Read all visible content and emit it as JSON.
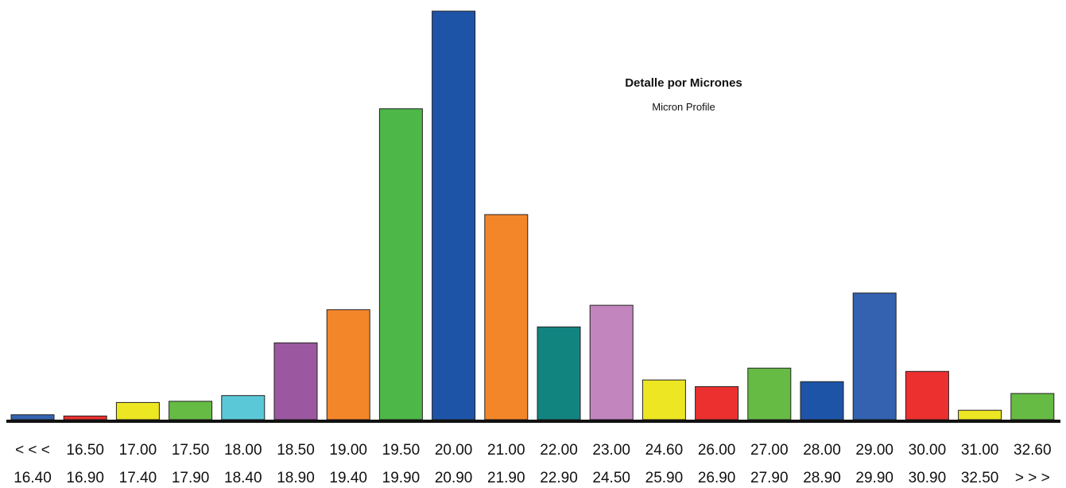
{
  "chart_data": {
    "type": "bar",
    "title": "Detalle por Micrones",
    "subtitle": "Micron Profile",
    "bins": [
      {
        "from": "< < <",
        "to": "16.40",
        "value": 1.2,
        "color": "#3462B0"
      },
      {
        "from": "16.50",
        "to": "16.90",
        "value": 0.9,
        "color": "#EC3030"
      },
      {
        "from": "17.00",
        "to": "17.40",
        "value": 4.2,
        "color": "#EDE623"
      },
      {
        "from": "17.50",
        "to": "17.90",
        "value": 4.5,
        "color": "#66BB44"
      },
      {
        "from": "18.00",
        "to": "18.40",
        "value": 5.9,
        "color": "#5BC8D8"
      },
      {
        "from": "18.50",
        "to": "18.90",
        "value": 18.8,
        "color": "#9B58A0"
      },
      {
        "from": "19.00",
        "to": "19.40",
        "value": 26.9,
        "color": "#F4862A"
      },
      {
        "from": "19.50",
        "to": "19.90",
        "value": 76.1,
        "color": "#4DB748"
      },
      {
        "from": "20.00",
        "to": "20.90",
        "value": 100.0,
        "color": "#1E54A8"
      },
      {
        "from": "21.00",
        "to": "21.90",
        "value": 50.2,
        "color": "#F4862A"
      },
      {
        "from": "22.00",
        "to": "22.90",
        "value": 22.7,
        "color": "#128480"
      },
      {
        "from": "23.00",
        "to": "24.50",
        "value": 28.0,
        "color": "#C285BE"
      },
      {
        "from": "24.60",
        "to": "25.90",
        "value": 9.7,
        "color": "#EDE623"
      },
      {
        "from": "26.00",
        "to": "26.90",
        "value": 8.1,
        "color": "#EC3030"
      },
      {
        "from": "27.00",
        "to": "27.90",
        "value": 12.6,
        "color": "#66BB44"
      },
      {
        "from": "28.00",
        "to": "28.90",
        "value": 9.3,
        "color": "#1E54A8"
      },
      {
        "from": "29.00",
        "to": "29.90",
        "value": 31.0,
        "color": "#3462B0"
      },
      {
        "from": "30.00",
        "to": "30.90",
        "value": 11.8,
        "color": "#EC3030"
      },
      {
        "from": "31.00",
        "to": "32.50",
        "value": 2.3,
        "color": "#EDE623"
      },
      {
        "from": "32.60",
        "to": "> > >",
        "value": 6.4,
        "color": "#66BB44"
      }
    ],
    "ylim": [
      0,
      100
    ],
    "grid": false,
    "legend": "none"
  }
}
